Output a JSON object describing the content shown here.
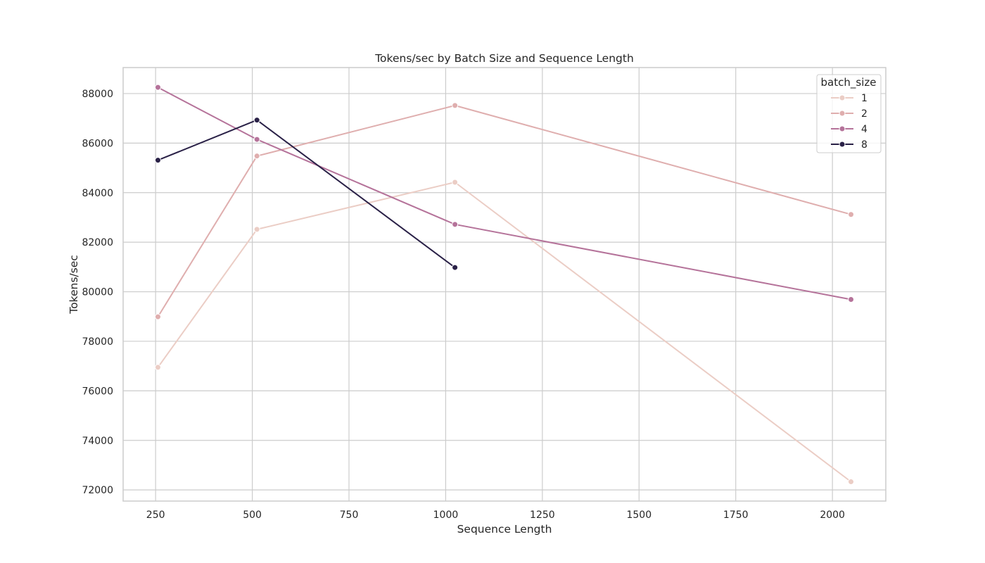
{
  "chart_data": {
    "type": "line",
    "title": "Tokens/sec by Batch Size and Sequence Length",
    "xlabel": "Sequence Length",
    "ylabel": "Tokens/sec",
    "xlim": [
      166,
      2138
    ],
    "ylim": [
      71550,
      89050
    ],
    "x_ticks": [
      250,
      500,
      750,
      1000,
      1250,
      1500,
      1750,
      2000
    ],
    "y_ticks": [
      72000,
      74000,
      76000,
      78000,
      80000,
      82000,
      84000,
      86000,
      88000
    ],
    "grid": true,
    "legend": {
      "title": "batch_size",
      "placement": "top-right"
    },
    "series": [
      {
        "name": "1",
        "color": "#ebcdc5",
        "x": [
          256,
          512,
          1024,
          2048
        ],
        "y": [
          76950,
          82520,
          84420,
          72330
        ]
      },
      {
        "name": "2",
        "color": "#dfaeae",
        "x": [
          256,
          512,
          1024,
          2048
        ],
        "y": [
          78990,
          85480,
          87520,
          83120
        ]
      },
      {
        "name": "4",
        "color": "#b5739a",
        "x": [
          256,
          512,
          1024,
          2048
        ],
        "y": [
          88250,
          86150,
          82720,
          79690
        ]
      },
      {
        "name": "8",
        "color": "#2a2147",
        "x": [
          256,
          512,
          1024
        ],
        "y": [
          85310,
          86930,
          80980
        ]
      }
    ]
  }
}
